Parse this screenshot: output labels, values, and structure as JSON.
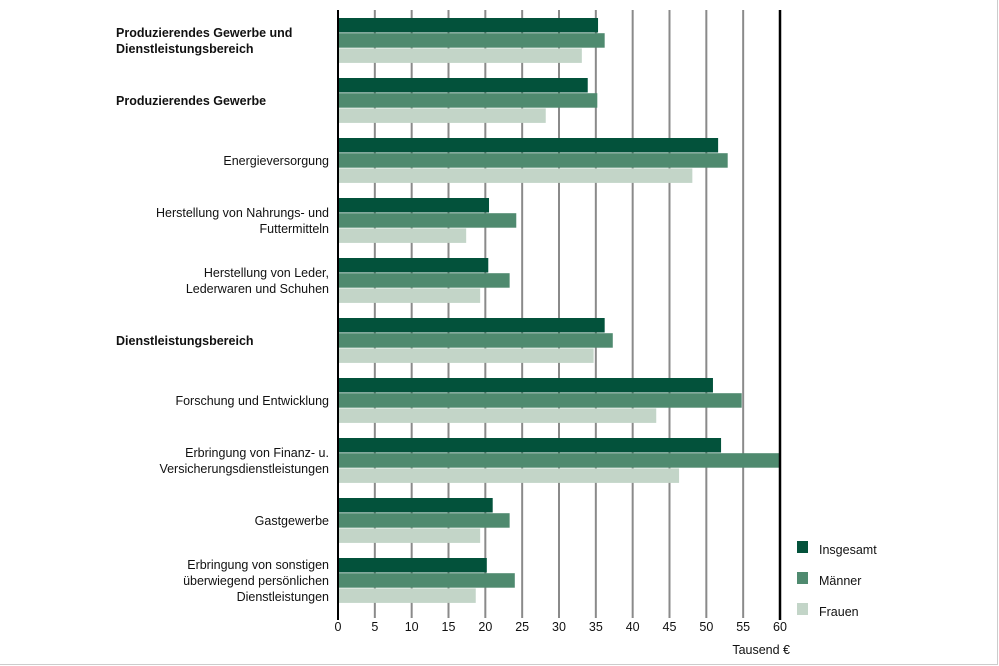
{
  "chart_data": {
    "type": "bar",
    "orientation": "horizontal",
    "categories": [
      {
        "lines": [
          "Produzierendes Gewerbe und",
          "Dienstleistungsbereich"
        ],
        "bold": true
      },
      {
        "lines": [
          "Produzierendes Gewerbe"
        ],
        "bold": true
      },
      {
        "lines": [
          "Energieversorgung"
        ],
        "bold": false
      },
      {
        "lines": [
          "Herstellung von Nahrungs- und",
          "Futtermitteln"
        ],
        "bold": false
      },
      {
        "lines": [
          "Herstellung von Leder,",
          "Lederwaren und Schuhen"
        ],
        "bold": false
      },
      {
        "lines": [
          "Dienstleistungsbereich"
        ],
        "bold": true
      },
      {
        "lines": [
          "Forschung und Entwicklung"
        ],
        "bold": false
      },
      {
        "lines": [
          "Erbringung von Finanz- u.",
          "Versicherungsdienstleistungen"
        ],
        "bold": false
      },
      {
        "lines": [
          "Gastgewerbe"
        ],
        "bold": false
      },
      {
        "lines": [
          "Erbringung von sonstigen",
          "überwiegend persönlichen",
          "Dienstleistungen"
        ],
        "bold": false
      }
    ],
    "series": [
      {
        "name": "Insgesamt",
        "color": "#03523b",
        "values": [
          35.3,
          33.9,
          51.6,
          20.5,
          20.4,
          36.2,
          50.9,
          52.0,
          21.0,
          20.2
        ]
      },
      {
        "name": "Männer",
        "color": "#4f8a6f",
        "values": [
          36.2,
          35.2,
          52.9,
          24.2,
          23.3,
          37.3,
          54.8,
          60.0,
          23.3,
          24.0
        ]
      },
      {
        "name": "Frauen",
        "color": "#c3d5c8",
        "values": [
          33.1,
          28.2,
          48.1,
          17.4,
          19.3,
          34.7,
          43.2,
          46.3,
          19.3,
          18.7
        ]
      }
    ],
    "xlabel": "Tausend €",
    "xlim": [
      0,
      60
    ],
    "xticks": [
      0,
      5,
      10,
      15,
      20,
      25,
      30,
      35,
      40,
      45,
      50,
      55,
      60
    ],
    "grid": true,
    "legend": "bottom-right"
  }
}
